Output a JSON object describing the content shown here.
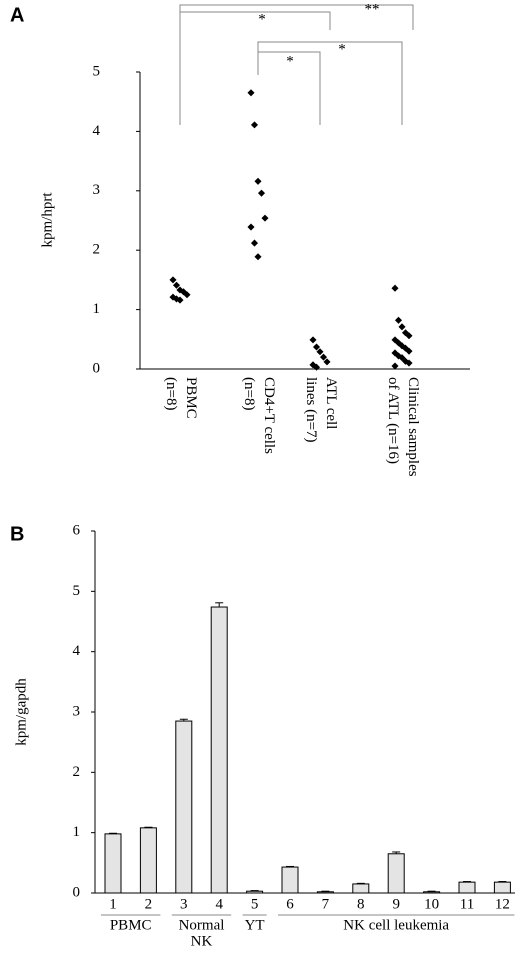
{
  "chart_data": [
    {
      "type": "strip",
      "panel": "A",
      "ylabel": "kpm/hprt",
      "categories": [
        [
          "PBMC",
          "(n=8)"
        ],
        [
          "CD4+T cells",
          "(n=8)"
        ],
        [
          "ATL cell",
          "lines (n=7)"
        ],
        [
          "Clinical samples",
          "of ATL (n=16)"
        ]
      ],
      "values": [
        [
          1.5,
          1.41,
          1.33,
          1.3,
          1.25,
          1.21,
          1.18,
          1.16
        ],
        [
          4.65,
          4.11,
          3.16,
          2.96,
          2.54,
          2.39,
          2.12,
          1.89
        ],
        [
          0.49,
          0.37,
          0.29,
          0.2,
          0.12,
          0.07,
          0.03
        ],
        [
          1.36,
          0.82,
          0.71,
          0.61,
          0.56,
          0.49,
          0.44,
          0.39,
          0.35,
          0.3,
          0.27,
          0.22,
          0.19,
          0.13,
          0.1,
          0.05
        ]
      ],
      "color": "#000000",
      "ylim": [
        0,
        5
      ],
      "yticks": [
        0,
        1,
        2,
        3,
        4,
        5
      ],
      "annotations": [
        "**",
        "*",
        "*",
        "*"
      ]
    },
    {
      "type": "bar",
      "panel": "B",
      "ylabel": "kpm/gapdh",
      "categories": [
        "1",
        "2",
        "3",
        "4",
        "5",
        "6",
        "7",
        "8",
        "9",
        "10",
        "11",
        "12"
      ],
      "values": [
        0.98,
        1.08,
        2.85,
        4.74,
        0.03,
        0.43,
        0.02,
        0.15,
        0.65,
        0.02,
        0.18,
        0.18
      ],
      "errors": [
        0.01,
        0.01,
        0.03,
        0.07,
        0.01,
        0.01,
        0.01,
        0.01,
        0.03,
        0.01,
        0.01,
        0.01
      ],
      "color": "#e4e4e4",
      "ylim": [
        0,
        6
      ],
      "yticks": [
        0,
        1,
        2,
        3,
        4,
        5,
        6
      ],
      "groups": [
        [
          "PBMC"
        ],
        [
          "Normal",
          "NK"
        ],
        [
          "YT"
        ],
        [
          "NK cell leukemia"
        ]
      ]
    }
  ]
}
